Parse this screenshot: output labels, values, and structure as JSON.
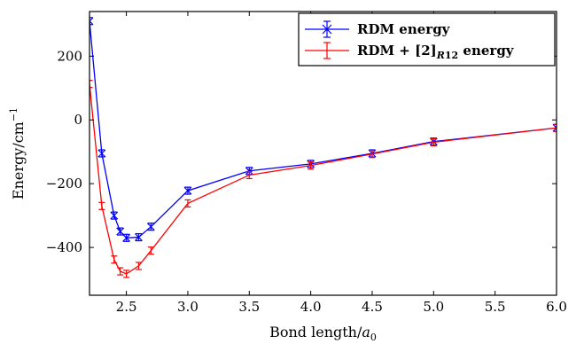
{
  "chart_data": {
    "type": "line",
    "xlabel": "Bond length/a₀",
    "ylabel": "Energy/cm⁻¹",
    "xlim": [
      2.2,
      6.0
    ],
    "ylim": [
      -550,
      340
    ],
    "xticks": [
      2.5,
      3.0,
      3.5,
      4.0,
      4.5,
      5.0,
      5.5,
      6.0
    ],
    "xtick_labels": [
      "2.5",
      "3.0",
      "3.5",
      "4.0",
      "4.5",
      "5.0",
      "5.5",
      "6.0"
    ],
    "yticks": [
      -400,
      -200,
      0,
      200
    ],
    "ytick_labels": [
      "−400",
      "−200",
      "0",
      "200"
    ],
    "grid": false,
    "legend_position": "top-right",
    "series": [
      {
        "name": "RDM energy",
        "color": "#0000ff",
        "marker": "x-with-errorbar",
        "x": [
          2.2,
          2.3,
          2.4,
          2.45,
          2.5,
          2.6,
          2.7,
          3.0,
          3.5,
          4.0,
          4.5,
          5.0,
          6.0
        ],
        "y": [
          310,
          -105,
          -300,
          -350,
          -370,
          -368,
          -335,
          -222,
          -160,
          -138,
          -105,
          -68,
          -25
        ]
      },
      {
        "name": "RDM + [2]_R12 energy",
        "color": "#ff0000",
        "marker": "errorbar",
        "x": [
          2.2,
          2.3,
          2.4,
          2.45,
          2.5,
          2.6,
          2.7,
          3.0,
          3.5,
          4.0,
          4.5,
          5.0,
          6.0
        ],
        "y": [
          113,
          -270,
          -438,
          -475,
          -483,
          -458,
          -410,
          -262,
          -173,
          -143,
          -107,
          -70,
          -25
        ]
      }
    ]
  }
}
